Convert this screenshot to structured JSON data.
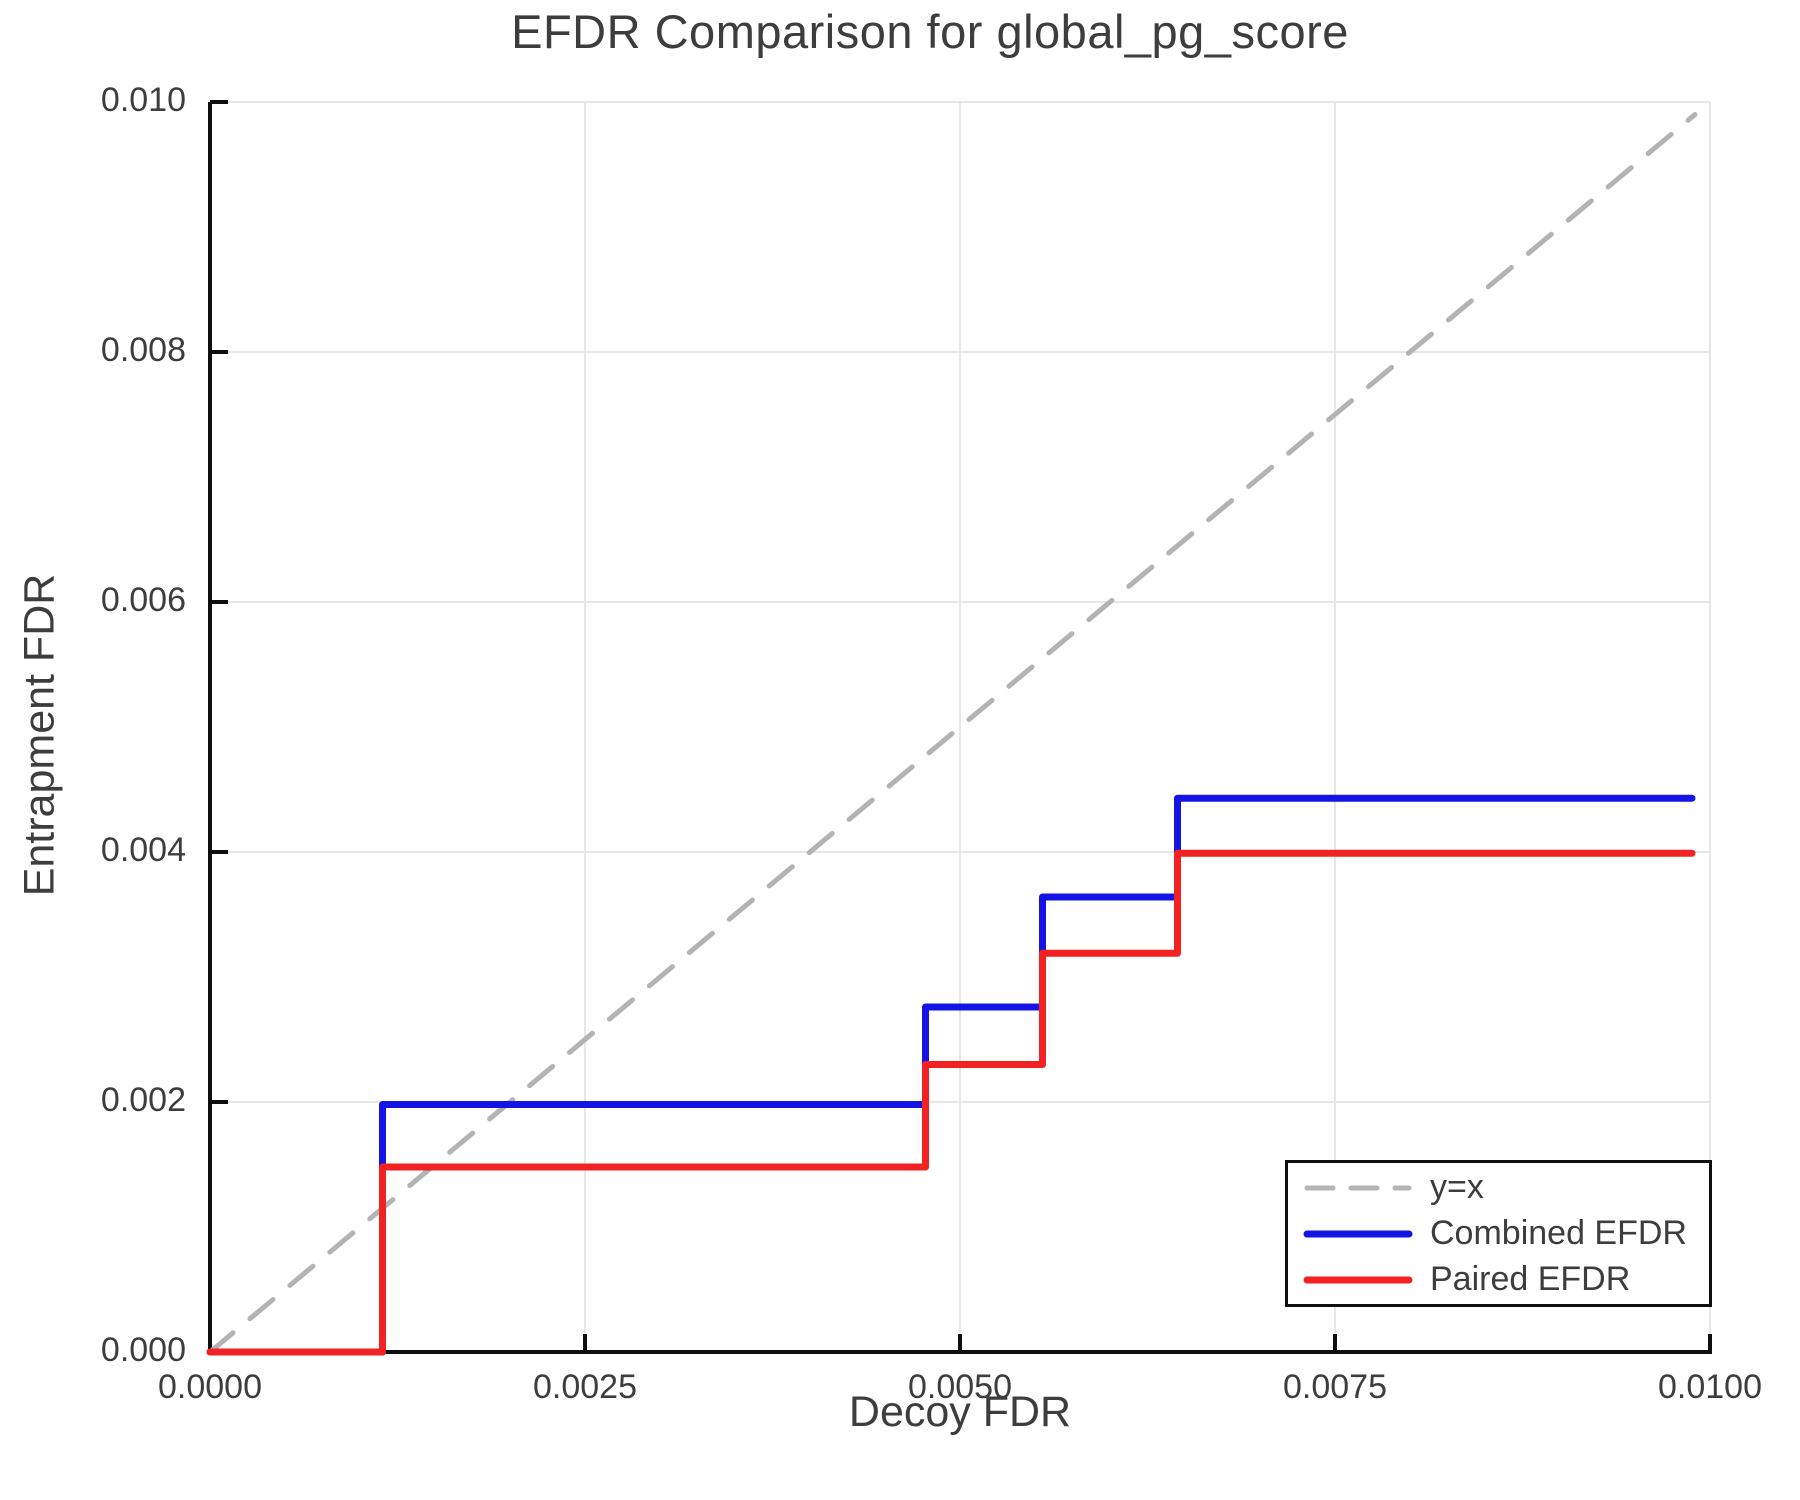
{
  "chart_data": {
    "type": "line",
    "title": "EFDR Comparison for global_pg_score",
    "xlabel": "Decoy FDR",
    "ylabel": "Entrapment FDR",
    "xlim": [
      0.0,
      0.01
    ],
    "ylim": [
      0.0,
      0.01
    ],
    "grid": true,
    "legend_position": "lower right",
    "x_ticks": {
      "values": [
        0.0,
        0.0025,
        0.005,
        0.0075,
        0.01
      ],
      "labels": [
        "0.0000",
        "0.0025",
        "0.0050",
        "0.0075",
        "0.0100"
      ]
    },
    "y_ticks": {
      "values": [
        0.0,
        0.002,
        0.004,
        0.006,
        0.008,
        0.01
      ],
      "labels": [
        "0.000",
        "0.002",
        "0.004",
        "0.006",
        "0.008",
        "0.010"
      ]
    },
    "series": [
      {
        "name": "y=x",
        "style": "dashed",
        "color": "#b3b3b3",
        "width": 5,
        "points": [
          [
            0.0,
            0.0
          ],
          [
            0.0099,
            0.0099
          ]
        ]
      },
      {
        "name": "Combined EFDR",
        "style": "solid",
        "color": "#1414e6",
        "width": 7,
        "points": [
          [
            0.0,
            0.0
          ],
          [
            0.00115,
            0.0
          ],
          [
            0.00115,
            0.00198
          ],
          [
            0.00477,
            0.00198
          ],
          [
            0.00477,
            0.00276
          ],
          [
            0.00555,
            0.00276
          ],
          [
            0.00555,
            0.00364
          ],
          [
            0.00645,
            0.00364
          ],
          [
            0.00645,
            0.00443
          ],
          [
            0.00988,
            0.00443
          ]
        ]
      },
      {
        "name": "Paired EFDR",
        "style": "solid",
        "color": "#f32222",
        "width": 7,
        "points": [
          [
            0.0,
            0.0
          ],
          [
            0.00115,
            0.0
          ],
          [
            0.00115,
            0.00148
          ],
          [
            0.00477,
            0.00148
          ],
          [
            0.00477,
            0.0023
          ],
          [
            0.00555,
            0.0023
          ],
          [
            0.00555,
            0.00319
          ],
          [
            0.00645,
            0.00319
          ],
          [
            0.00645,
            0.00399
          ],
          [
            0.00988,
            0.00399
          ]
        ]
      }
    ]
  },
  "colors": {
    "text": "#3d3d3d",
    "grid": "#e7e7e7",
    "spine": "#0f0f0f",
    "legend_border": "#0f0f0f",
    "background": "#ffffff"
  }
}
